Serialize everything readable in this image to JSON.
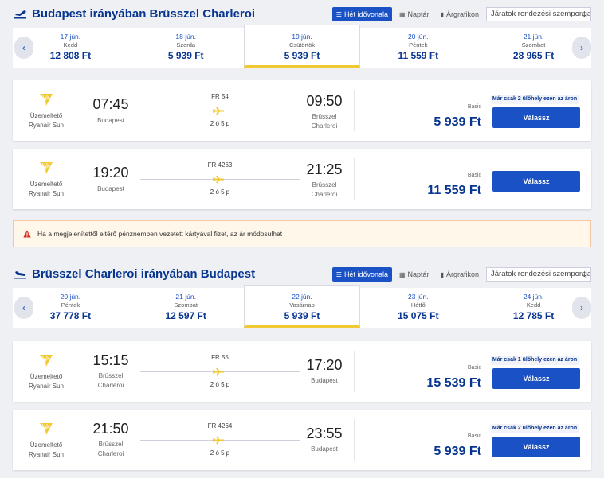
{
  "outbound": {
    "title": "Budapest irányában Brüsszel Charleroi",
    "views": {
      "week": "Hét idővonala",
      "calendar": "Naptár",
      "chart": "Árgrafikon"
    },
    "sort_label": "Járatok rendezési szempontja:",
    "dates": [
      {
        "date": "17 jún.",
        "weekday": "Kedd",
        "price": "12 808 Ft"
      },
      {
        "date": "18 jún.",
        "weekday": "Szerda",
        "price": "5 939 Ft"
      },
      {
        "date": "19 jún.",
        "weekday": "Csütörtök",
        "price": "5 939 Ft",
        "selected": true
      },
      {
        "date": "20 jún.",
        "weekday": "Péntek",
        "price": "11 559 Ft"
      },
      {
        "date": "21 jún.",
        "weekday": "Szombat",
        "price": "28 965 Ft"
      }
    ],
    "flights": [
      {
        "operator_label": "Üzemeltető",
        "operator": "Ryanair Sun",
        "dep_time": "07:45",
        "dep_city_1": "Budapest",
        "dep_city_2": "",
        "flight_no": "FR 54",
        "duration": "2 ó 5 p",
        "arr_time": "09:50",
        "arr_city_1": "Brüsszel",
        "arr_city_2": "Charleroi",
        "fare_type": "Basic",
        "price": "5 939 Ft",
        "seats": "Már csak 2 ülőhely ezen az áron",
        "button": "Válassz"
      },
      {
        "operator_label": "Üzemeltető",
        "operator": "Ryanair Sun",
        "dep_time": "19:20",
        "dep_city_1": "Budapest",
        "dep_city_2": "",
        "flight_no": "FR 4263",
        "duration": "2 ó 5 p",
        "arr_time": "21:25",
        "arr_city_1": "Brüsszel",
        "arr_city_2": "Charleroi",
        "fare_type": "Basic",
        "price": "11 559 Ft",
        "seats": "",
        "button": "Válassz"
      }
    ]
  },
  "warning_text": "Ha a megjelenítettől eltérő pénznemben vezetett kártyával fizet, az ár módosulhat",
  "return": {
    "title": "Brüsszel Charleroi irányában Budapest",
    "views": {
      "week": "Hét idővonala",
      "calendar": "Naptár",
      "chart": "Árgrafikon"
    },
    "sort_label": "Járatok rendezési szempontja:",
    "dates": [
      {
        "date": "20 jún.",
        "weekday": "Péntek",
        "price": "37 778 Ft"
      },
      {
        "date": "21 jún.",
        "weekday": "Szombat",
        "price": "12 597 Ft"
      },
      {
        "date": "22 jún.",
        "weekday": "Vasárnap",
        "price": "5 939 Ft",
        "selected": true
      },
      {
        "date": "23 jún.",
        "weekday": "Hétfő",
        "price": "15 075 Ft"
      },
      {
        "date": "24 jún.",
        "weekday": "Kedd",
        "price": "12 785 Ft"
      }
    ],
    "flights": [
      {
        "operator_label": "Üzemeltető",
        "operator": "Ryanair Sun",
        "dep_time": "15:15",
        "dep_city_1": "Brüsszel",
        "dep_city_2": "Charleroi",
        "flight_no": "FR 55",
        "duration": "2 ó 5 p",
        "arr_time": "17:20",
        "arr_city_1": "Budapest",
        "arr_city_2": "",
        "fare_type": "Basic",
        "price": "15 539 Ft",
        "seats": "Már csak 1 ülőhely ezen az áron",
        "button": "Válassz"
      },
      {
        "operator_label": "Üzemeltető",
        "operator": "Ryanair Sun",
        "dep_time": "21:50",
        "dep_city_1": "Brüsszel",
        "dep_city_2": "Charleroi",
        "flight_no": "FR 4264",
        "duration": "2 ó 5 p",
        "arr_time": "23:55",
        "arr_city_1": "Budapest",
        "arr_city_2": "",
        "fare_type": "Basic",
        "price": "5 939 Ft",
        "seats": "Már csak 2 ülőhely ezen az áron",
        "button": "Válassz"
      }
    ]
  },
  "colors": {
    "brand_blue": "#073590",
    "button_blue": "#1a52c6",
    "accent_yellow": "#f1c933",
    "warning_red": "#d0311b"
  },
  "icons": {
    "section": "plane-takeoff-icon",
    "logo": "ryanair-harp-icon",
    "route": "plane-icon",
    "warning": "warning-triangle-icon"
  }
}
